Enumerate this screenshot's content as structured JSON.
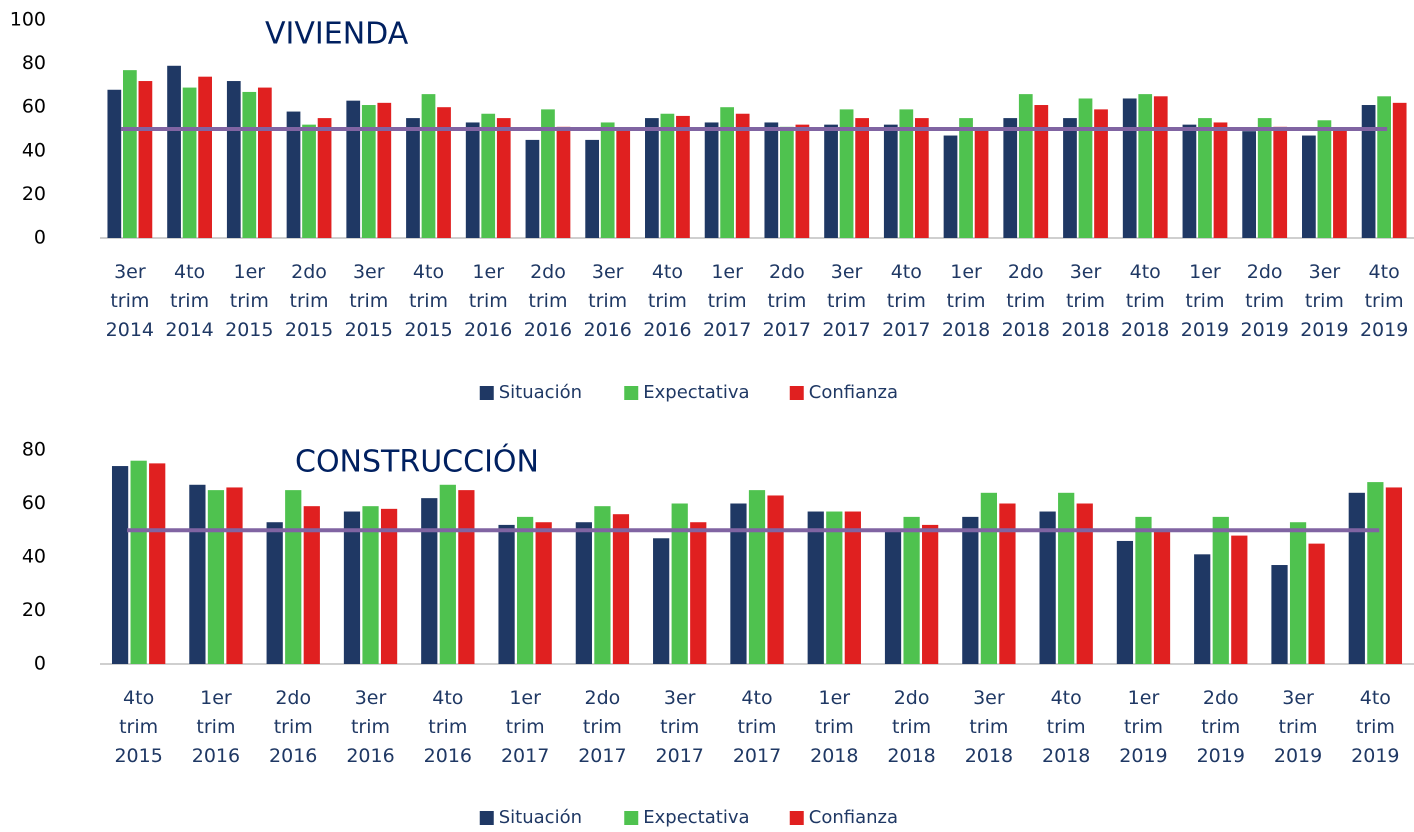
{
  "chart_data": [
    {
      "type": "bar",
      "title": "VIVIENDA",
      "categories": [
        [
          "3er",
          "trim",
          "2014"
        ],
        [
          "4to",
          "trim",
          "2014"
        ],
        [
          "1er",
          "trim",
          "2015"
        ],
        [
          "2do",
          "trim",
          "2015"
        ],
        [
          "3er",
          "trim",
          "2015"
        ],
        [
          "4to",
          "trim",
          "2015"
        ],
        [
          "1er",
          "trim",
          "2016"
        ],
        [
          "2do",
          "trim",
          "2016"
        ],
        [
          "3er",
          "trim",
          "2016"
        ],
        [
          "4to",
          "trim",
          "2016"
        ],
        [
          "1er",
          "trim",
          "2017"
        ],
        [
          "2do",
          "trim",
          "2017"
        ],
        [
          "3er",
          "trim",
          "2017"
        ],
        [
          "4to",
          "trim",
          "2017"
        ],
        [
          "1er",
          "trim",
          "2018"
        ],
        [
          "2do",
          "trim",
          "2018"
        ],
        [
          "3er",
          "trim",
          "2018"
        ],
        [
          "4to",
          "trim",
          "2018"
        ],
        [
          "1er",
          "trim",
          "2019"
        ],
        [
          "2do",
          "trim",
          "2019"
        ],
        [
          "3er",
          "trim",
          "2019"
        ],
        [
          "4to",
          "trim",
          "2019"
        ]
      ],
      "series": [
        {
          "name": "Situación",
          "color": "#1f3864",
          "values": [
            68,
            79,
            72,
            58,
            63,
            55,
            53,
            45,
            45,
            55,
            53,
            53,
            52,
            52,
            47,
            55,
            55,
            64,
            52,
            49,
            47,
            61
          ]
        },
        {
          "name": "Expectativa",
          "color": "#4fc24f",
          "values": [
            77,
            69,
            67,
            52,
            61,
            66,
            57,
            59,
            53,
            57,
            60,
            51,
            59,
            59,
            55,
            66,
            64,
            66,
            55,
            55,
            54,
            65
          ]
        },
        {
          "name": "Confianza",
          "color": "#e02020",
          "values": [
            72,
            74,
            69,
            55,
            62,
            60,
            55,
            51,
            50,
            56,
            57,
            52,
            55,
            55,
            50,
            61,
            59,
            65,
            53,
            51,
            50,
            62
          ]
        }
      ],
      "reference_line": {
        "value": 50,
        "color": "#8064a2"
      },
      "ylim": [
        0,
        100
      ],
      "yticks": [
        0,
        20,
        40,
        60,
        80,
        100
      ],
      "legend": "bottom"
    },
    {
      "type": "bar",
      "title": "CONSTRUCCIÓN",
      "categories": [
        [
          "4to",
          "trim",
          "2015"
        ],
        [
          "1er",
          "trim",
          "2016"
        ],
        [
          "2do",
          "trim",
          "2016"
        ],
        [
          "3er",
          "trim",
          "2016"
        ],
        [
          "4to",
          "trim",
          "2016"
        ],
        [
          "1er",
          "trim",
          "2017"
        ],
        [
          "2do",
          "trim",
          "2017"
        ],
        [
          "3er",
          "trim",
          "2017"
        ],
        [
          "4to",
          "trim",
          "2017"
        ],
        [
          "1er",
          "trim",
          "2018"
        ],
        [
          "2do",
          "trim",
          "2018"
        ],
        [
          "3er",
          "trim",
          "2018"
        ],
        [
          "4to",
          "trim",
          "2018"
        ],
        [
          "1er",
          "trim",
          "2019"
        ],
        [
          "2do",
          "trim",
          "2019"
        ],
        [
          "3er",
          "trim",
          "2019"
        ],
        [
          "4to",
          "trim",
          "2019"
        ]
      ],
      "series": [
        {
          "name": "Situación",
          "color": "#1f3864",
          "values": [
            74,
            67,
            53,
            57,
            62,
            52,
            53,
            47,
            60,
            57,
            50,
            55,
            57,
            46,
            41,
            37,
            64
          ]
        },
        {
          "name": "Expectativa",
          "color": "#4fc24f",
          "values": [
            76,
            65,
            65,
            59,
            67,
            55,
            59,
            60,
            65,
            57,
            55,
            64,
            64,
            55,
            55,
            53,
            68
          ]
        },
        {
          "name": "Confianza",
          "color": "#e02020",
          "values": [
            75,
            66,
            59,
            58,
            65,
            53,
            56,
            53,
            63,
            57,
            52,
            60,
            60,
            50,
            48,
            45,
            66
          ]
        }
      ],
      "reference_line": {
        "value": 50,
        "color": "#8064a2"
      },
      "ylim": [
        0,
        80
      ],
      "yticks": [
        0,
        20,
        40,
        60,
        80
      ],
      "legend": "bottom"
    }
  ]
}
